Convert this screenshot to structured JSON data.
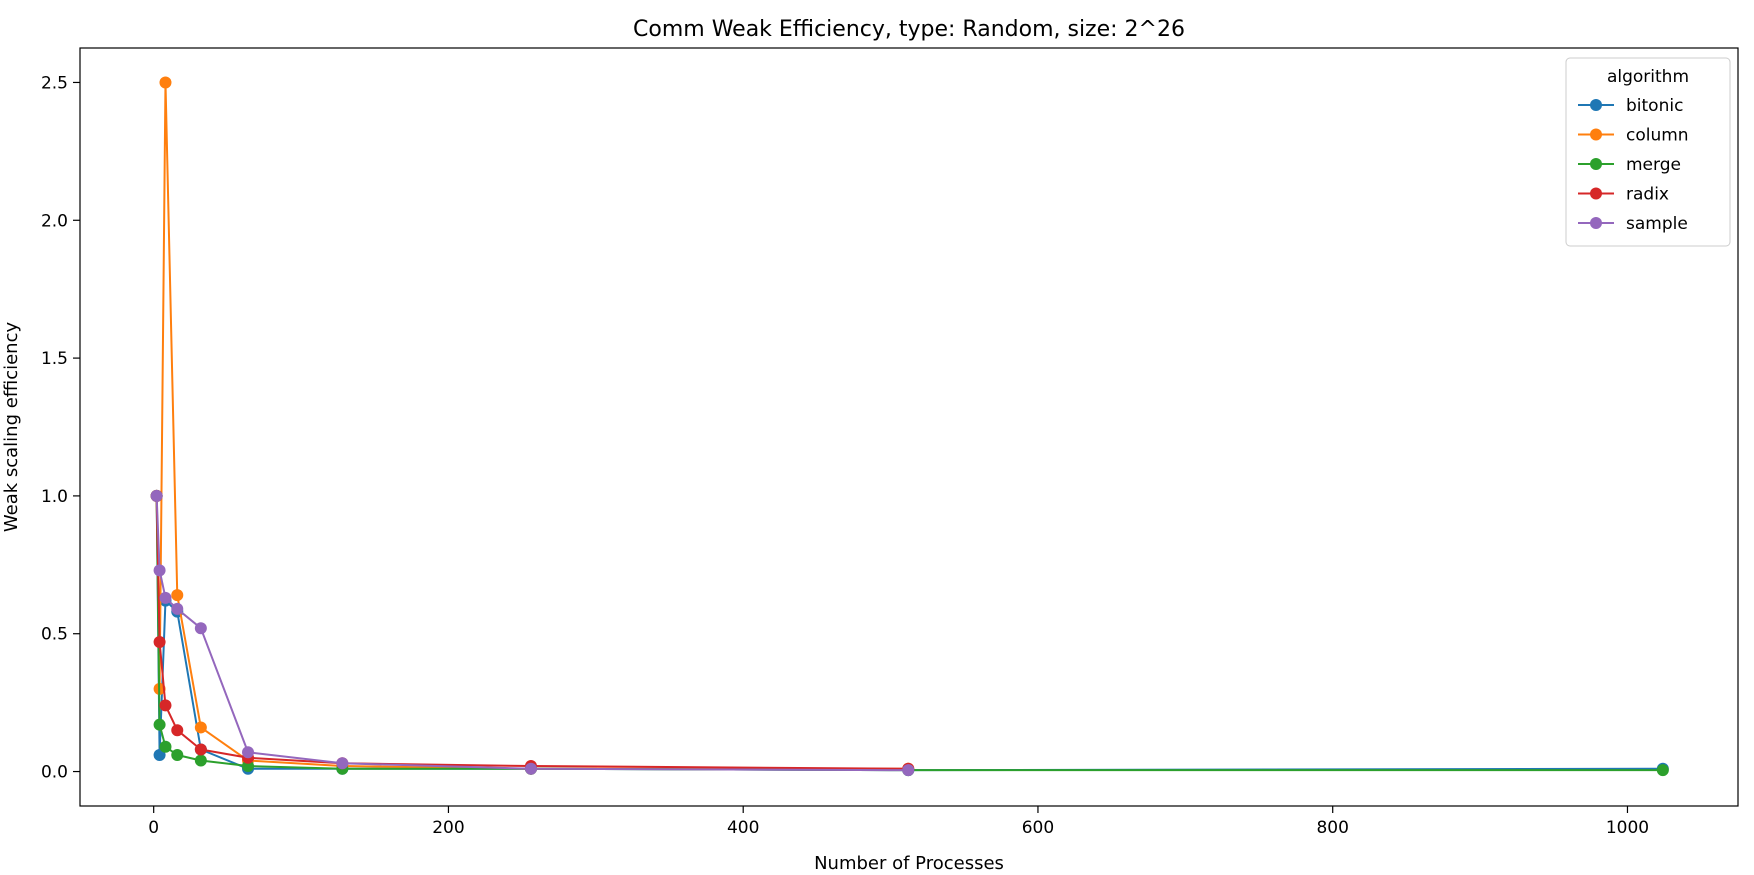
{
  "chart_data": {
    "type": "line",
    "title": "Comm Weak Efficiency, type: Random, size: 2^26",
    "xlabel": "Number of Processes",
    "ylabel": "Weak scaling efficiency",
    "xlim": [
      -50,
      1075
    ],
    "ylim": [
      -0.125,
      2.625
    ],
    "xticks": [
      0,
      200,
      400,
      600,
      800,
      1000
    ],
    "yticks": [
      0.0,
      0.5,
      1.0,
      1.5,
      2.0,
      2.5
    ],
    "xtick_labels": [
      "0",
      "200",
      "400",
      "600",
      "800",
      "1000"
    ],
    "ytick_labels": [
      "0.0",
      "0.5",
      "1.0",
      "1.5",
      "2.0",
      "2.5"
    ],
    "grid": false,
    "legend": {
      "title": "algorithm",
      "placement": "top-right"
    },
    "series": [
      {
        "name": "bitonic",
        "color": "#1f77b4",
        "x": [
          2,
          4,
          8,
          16,
          32,
          64,
          128,
          256,
          512,
          1024
        ],
        "y": [
          1.0,
          0.06,
          0.62,
          0.58,
          0.08,
          0.01,
          0.01,
          0.01,
          0.005,
          0.01
        ]
      },
      {
        "name": "column",
        "color": "#ff7f0e",
        "x": [
          2,
          4,
          8,
          16,
          32,
          64,
          128,
          256,
          512
        ],
        "y": [
          1.0,
          0.3,
          2.5,
          0.64,
          0.16,
          0.04,
          0.02,
          0.01,
          0.01
        ]
      },
      {
        "name": "merge",
        "color": "#2ca02c",
        "x": [
          2,
          4,
          8,
          16,
          32,
          64,
          128,
          256,
          512,
          1024
        ],
        "y": [
          1.0,
          0.17,
          0.09,
          0.06,
          0.04,
          0.02,
          0.01,
          0.01,
          0.005,
          0.005
        ]
      },
      {
        "name": "radix",
        "color": "#d62728",
        "x": [
          2,
          4,
          8,
          16,
          32,
          64,
          128,
          256,
          512
        ],
        "y": [
          1.0,
          0.47,
          0.24,
          0.15,
          0.08,
          0.05,
          0.03,
          0.02,
          0.01
        ]
      },
      {
        "name": "sample",
        "color": "#9467bd",
        "x": [
          2,
          4,
          8,
          16,
          32,
          64,
          128,
          256,
          512
        ],
        "y": [
          1.0,
          0.73,
          0.63,
          0.59,
          0.52,
          0.07,
          0.03,
          0.01,
          0.005
        ]
      }
    ]
  }
}
